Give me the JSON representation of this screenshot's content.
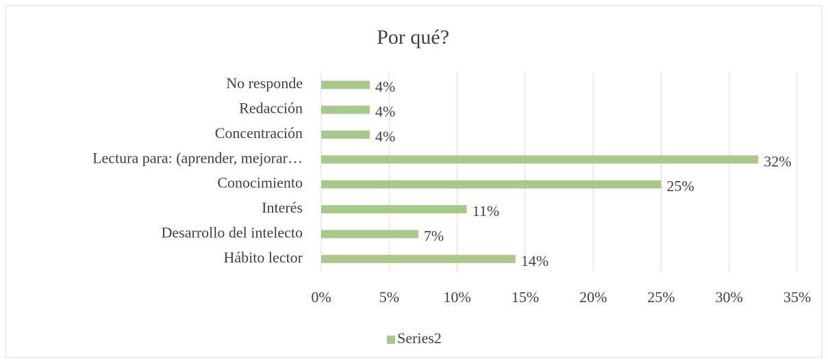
{
  "chart_data": {
    "type": "bar",
    "orientation": "horizontal",
    "title": "Por qué?",
    "categories": [
      "No responde",
      "Redacción",
      "Concentración",
      "Lectura para: (aprender, mejorar…",
      "Conocimiento",
      "Interés",
      "Desarrollo del intelecto",
      "Hábito lector"
    ],
    "series": [
      {
        "name": "Series2",
        "color": "#a9c98a",
        "values": [
          3.57,
          3.57,
          3.57,
          32.14,
          25,
          10.71,
          7.14,
          14.29
        ],
        "value_labels": [
          "4%",
          "4%",
          "4%",
          "32%",
          "25%",
          "11%",
          "7%",
          "14%"
        ]
      }
    ],
    "xlim": [
      0,
      35
    ],
    "xticks": [
      {
        "value": 0,
        "label": "0%"
      },
      {
        "value": 5,
        "label": "5%"
      },
      {
        "value": 10,
        "label": "10%"
      },
      {
        "value": 15,
        "label": "15%"
      },
      {
        "value": 20,
        "label": "20%"
      },
      {
        "value": 25,
        "label": "25%"
      },
      {
        "value": 30,
        "label": "30%"
      },
      {
        "value": 35,
        "label": "35%"
      }
    ],
    "grid": true,
    "legend": "bottom"
  }
}
